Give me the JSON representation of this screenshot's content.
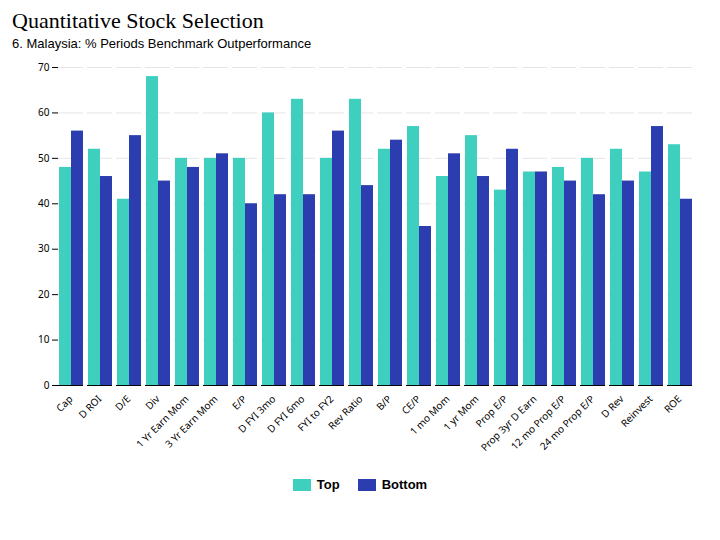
{
  "chart_data": {
    "type": "bar",
    "title": "Quantitative Stock Selection",
    "subtitle": "6. Malaysia: % Periods Benchmark Outperformance",
    "categories": [
      "Cap",
      "D ROI",
      "D/E",
      "Div",
      "1 Yr Earn Mom",
      "3 Yr Earn Mom",
      "E/P",
      "D FYI 3mo",
      "D FYI 6mo",
      "FYI to FY2",
      "Rev Ratio",
      "B/P",
      "CE/P",
      "1 mo Mom",
      "1 yr Mom",
      "Prop E/P",
      "Prop 3yr D Earn",
      "12 mo Prop E/P",
      "24 mo Prop E/P",
      "D Rev",
      "Reinvest",
      "ROE"
    ],
    "series": [
      {
        "name": "Top",
        "color": "#3ECFBF",
        "values": [
          48,
          52,
          41,
          68,
          50,
          50,
          50,
          60,
          63,
          50,
          63,
          52,
          57,
          46,
          55,
          43,
          47,
          48,
          50,
          52,
          47,
          53
        ]
      },
      {
        "name": "Bottom",
        "color": "#2B3DAF",
        "values": [
          56,
          46,
          55,
          45,
          48,
          51,
          40,
          42,
          42,
          56,
          44,
          54,
          35,
          51,
          46,
          52,
          47,
          45,
          42,
          45,
          57,
          41
        ]
      }
    ],
    "ylim": [
      0,
      70
    ],
    "yticks": [
      0,
      10,
      20,
      30,
      40,
      50,
      60,
      70
    ],
    "grid": true,
    "legend": "bottom"
  }
}
